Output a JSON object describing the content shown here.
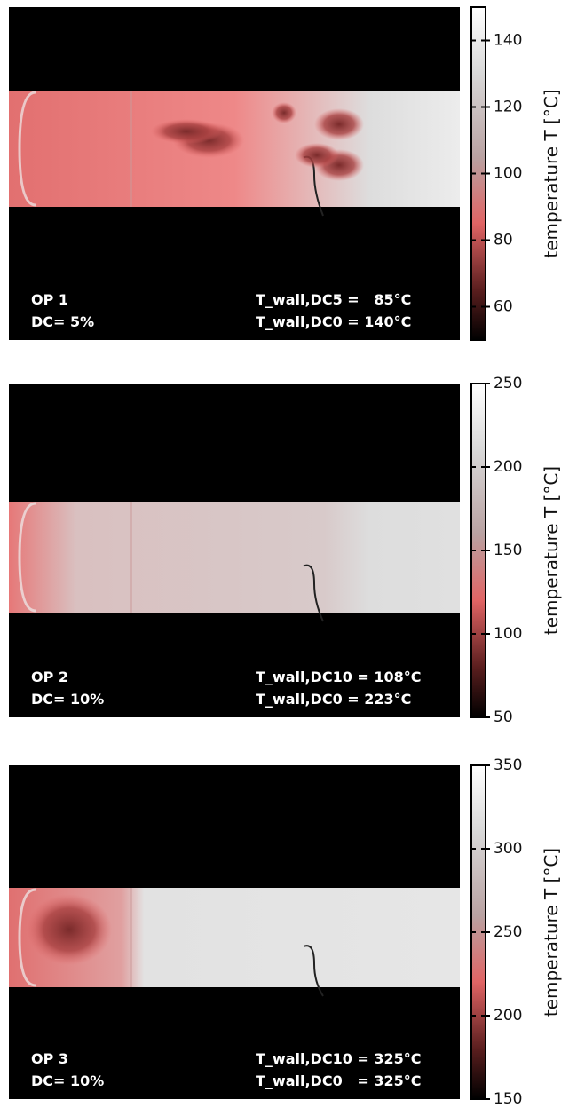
{
  "panels": [
    {
      "op": "OP 1",
      "dc": "DC= 5%",
      "wall_dc": "T_wall,DC5 =   85°C",
      "wall_dc0": "T_wall,DC0 = 140°C",
      "colorbar": {
        "label": "temperature T [°C]",
        "lim": [
          50,
          150
        ],
        "ticks": [
          60,
          80,
          100,
          120,
          140
        ]
      }
    },
    {
      "op": "OP 2",
      "dc": "DC= 10%",
      "wall_dc": "T_wall,DC10 = 108°C",
      "wall_dc0": "T_wall,DC0 = 223°C",
      "colorbar": {
        "label": "temperature T [°C]",
        "lim": [
          50,
          250
        ],
        "ticks": [
          50,
          100,
          150,
          200,
          250
        ]
      }
    },
    {
      "op": "OP 3",
      "dc": "DC= 10%",
      "wall_dc": "T_wall,DC10 = 325°C",
      "wall_dc0": "T_wall,DC0   = 325°C",
      "colorbar": {
        "label": "temperature T [°C]",
        "lim": [
          150,
          350
        ],
        "ticks": [
          150,
          200,
          250,
          300,
          350
        ]
      }
    }
  ]
}
